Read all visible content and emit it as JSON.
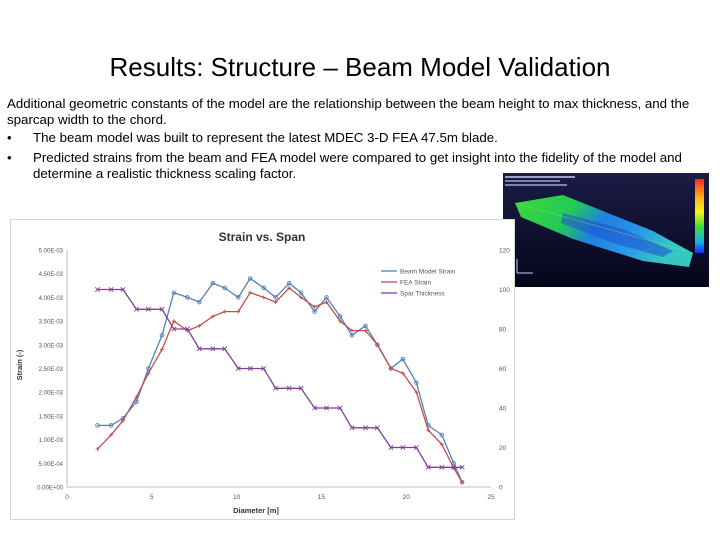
{
  "slide": {
    "title": "Results: Structure – Beam Model Validation",
    "intro": "Additional geometric constants of the model are the relationship between the beam height to max thickness, and the sparcap width to the chord.",
    "bullet_char": "•",
    "bullets": [
      "The beam model was built to represent the latest MDEC 3-D FEA 47.5m blade.",
      "Predicted strains from the beam and FEA model were compared to get insight into the fidelity of the model and determine a realistic thickness scaling factor."
    ]
  },
  "chart_data": {
    "type": "line",
    "title": "Strain vs. Span",
    "xlabel": "Diameter [m]",
    "ylabel": "Strain (-)",
    "xlim": [
      0,
      25
    ],
    "ylim": [
      0,
      0.005
    ],
    "y2lim": [
      0,
      120
    ],
    "x_ticks": [
      "0",
      "5",
      "10",
      "15",
      "20",
      "25"
    ],
    "y_ticks": [
      "0.00E+00",
      "5.00E-04",
      "1.00E-03",
      "1.50E-03",
      "2.00E-03",
      "2.50E-03",
      "3.00E-03",
      "3.50E-03",
      "4.00E-03",
      "4.50E-03",
      "5.00E-03"
    ],
    "y2_ticks": [
      "0",
      "20",
      "40",
      "60",
      "80",
      "100",
      "120"
    ],
    "grid": false,
    "legend_position": "top-right",
    "series": [
      {
        "name": "Beam Model Strain",
        "axis": "left",
        "color": "#4f81bd",
        "marker": "circle",
        "x": [
          1.8,
          2.6,
          3.3,
          4.1,
          4.8,
          5.6,
          6.3,
          7.1,
          7.8,
          8.6,
          9.3,
          10.1,
          10.8,
          11.6,
          12.3,
          13.1,
          13.8,
          14.6,
          15.3,
          16.1,
          16.8,
          17.6,
          18.3,
          19.1,
          19.8,
          20.6,
          21.3,
          22.1,
          22.8,
          23.3
        ],
        "y": [
          0.0013,
          0.0013,
          0.00145,
          0.0018,
          0.0025,
          0.0032,
          0.0041,
          0.004,
          0.0039,
          0.0043,
          0.0042,
          0.004,
          0.0044,
          0.0042,
          0.004,
          0.0043,
          0.0041,
          0.0037,
          0.004,
          0.0036,
          0.0032,
          0.0034,
          0.003,
          0.0025,
          0.0027,
          0.0022,
          0.0013,
          0.0011,
          0.0005,
          0.0001
        ]
      },
      {
        "name": "FEA Strain",
        "axis": "left",
        "color": "#c0504d",
        "marker": "plus",
        "x": [
          1.8,
          2.6,
          3.3,
          4.1,
          4.8,
          5.6,
          6.3,
          7.1,
          7.8,
          8.6,
          9.3,
          10.1,
          10.8,
          11.6,
          12.3,
          13.1,
          13.8,
          14.6,
          15.3,
          16.1,
          16.8,
          17.6,
          18.3,
          19.1,
          19.8,
          20.6,
          21.3,
          22.1,
          22.8,
          23.3
        ],
        "y": [
          0.0008,
          0.0011,
          0.0014,
          0.0019,
          0.0024,
          0.0029,
          0.0035,
          0.0033,
          0.0034,
          0.0036,
          0.0037,
          0.0037,
          0.0041,
          0.004,
          0.0039,
          0.0042,
          0.004,
          0.0038,
          0.0039,
          0.0035,
          0.0033,
          0.0033,
          0.003,
          0.0025,
          0.0024,
          0.002,
          0.0012,
          0.0009,
          0.0004,
          0.0001
        ]
      },
      {
        "name": "Spar Thickness",
        "axis": "right",
        "color": "#7f3f98",
        "marker": "x",
        "x": [
          1.8,
          2.6,
          3.3,
          4.1,
          4.8,
          5.6,
          6.3,
          7.1,
          7.8,
          8.6,
          9.3,
          10.1,
          10.8,
          11.6,
          12.3,
          13.1,
          13.8,
          14.6,
          15.3,
          16.1,
          16.8,
          17.6,
          18.3,
          19.1,
          19.8,
          20.6,
          21.3,
          22.1,
          22.8,
          23.3
        ],
        "y": [
          100,
          100,
          100,
          90,
          90,
          90,
          80,
          80,
          70,
          70,
          70,
          60,
          60,
          60,
          50,
          50,
          50,
          40,
          40,
          40,
          30,
          30,
          30,
          20,
          20,
          20,
          10,
          10,
          10,
          10
        ]
      }
    ]
  }
}
